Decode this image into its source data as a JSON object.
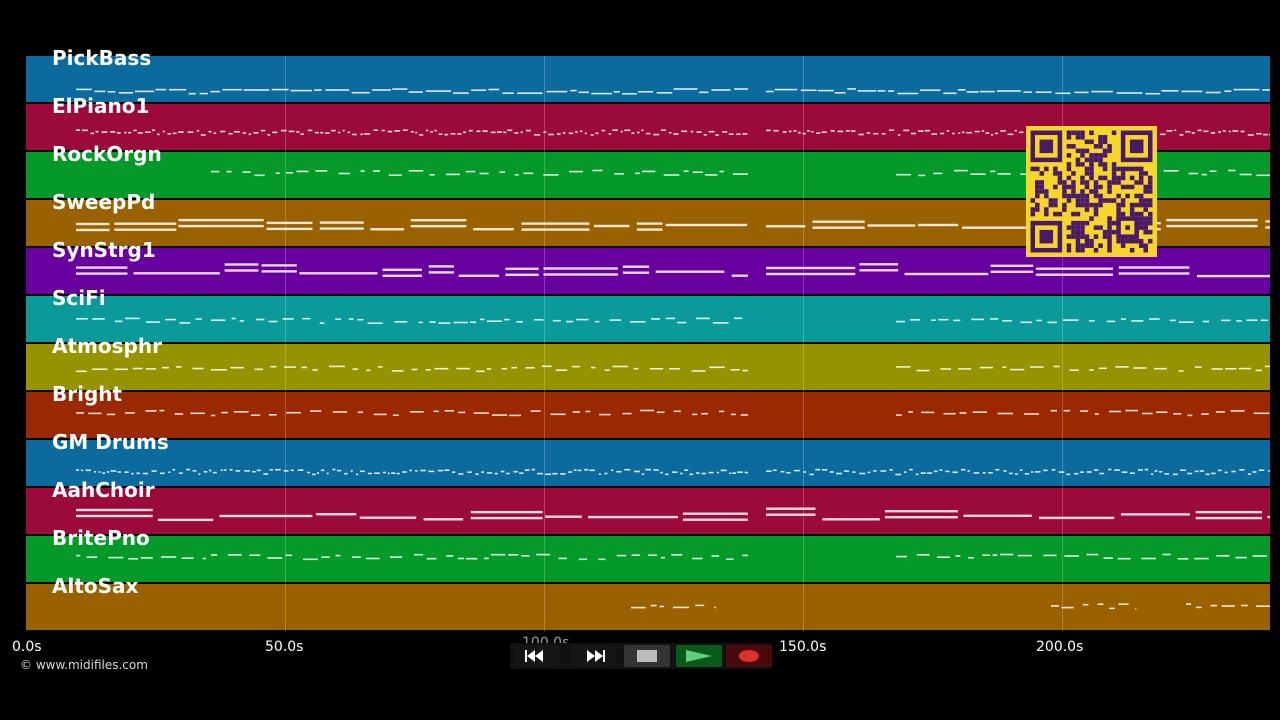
{
  "app": {
    "copyright": "© www.midifiles.com"
  },
  "timeline": {
    "ticks": [
      "0.0s",
      "50.0s",
      "100.0s",
      "150.0s",
      "200.0s"
    ],
    "ticks_visible_note": ""
  },
  "tracks": [
    {
      "name": "PickBass",
      "color": "#0b6a9e",
      "density": "line",
      "noteY": 0.72
    },
    {
      "name": "ElPiano1",
      "color": "#9c0a3c",
      "density": "dense",
      "noteY": 0.58
    },
    {
      "name": "RockOrgn",
      "color": "#05992a",
      "density": "sparse",
      "noteY": 0.42
    },
    {
      "name": "SweepPd",
      "color": "#9a6100",
      "density": "long",
      "noteY": 0.55
    },
    {
      "name": "SynStrg1",
      "color": "#6800a0",
      "density": "long",
      "noteY": 0.5
    },
    {
      "name": "SciFi",
      "color": "#0a9a9a",
      "density": "sparse",
      "noteY": 0.5
    },
    {
      "name": "Atmosphr",
      "color": "#959400",
      "density": "sparse",
      "noteY": 0.5
    },
    {
      "name": "Bright",
      "color": "#9a2800",
      "density": "sparse",
      "noteY": 0.42
    },
    {
      "name": "GM Drums",
      "color": "#0b6a9e",
      "density": "dense",
      "noteY": 0.65
    },
    {
      "name": "AahChoir",
      "color": "#9c0a3c",
      "density": "long",
      "noteY": 0.58
    },
    {
      "name": "BritePno",
      "color": "#05992a",
      "density": "sparse",
      "noteY": 0.42
    },
    {
      "name": "AltoSax",
      "color": "#9a6100",
      "density": "sax",
      "noteY": 0.45
    }
  ],
  "controls": {
    "rewind_icon": "rewind-icon",
    "forward_icon": "fast-forward-icon",
    "stop_icon": "stop-icon",
    "play_icon": "play-icon",
    "record_icon": "record-icon"
  }
}
